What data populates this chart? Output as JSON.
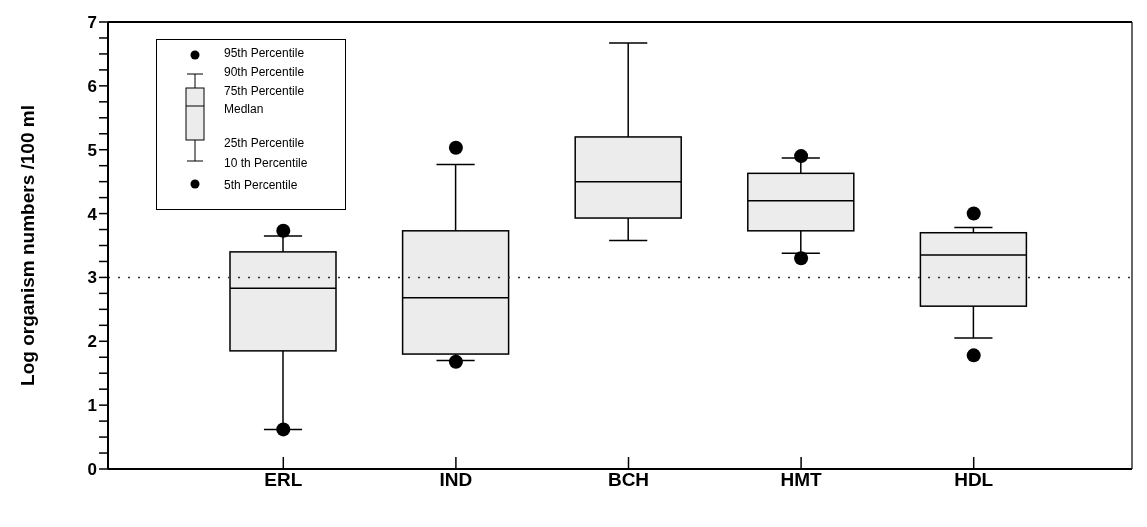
{
  "chart_data": {
    "type": "box",
    "ylabel": "Log organism numbers /100 ml",
    "categories": [
      "ERL",
      "IND",
      "BCH",
      "HMT",
      "HDL"
    ],
    "series": [
      {
        "color": "#ececec",
        "boxes": [
          {
            "low": 0.62,
            "q1": 1.85,
            "median": 2.83,
            "q3": 3.4,
            "high": 3.65,
            "outliers": [
              0.62,
              3.73
            ]
          },
          {
            "low": 1.7,
            "q1": 1.8,
            "median": 2.68,
            "q3": 3.73,
            "high": 4.77,
            "outliers": [
              1.68,
              5.03
            ]
          },
          {
            "low": 3.58,
            "q1": 3.93,
            "median": 4.5,
            "q3": 5.2,
            "high": 6.67
          },
          {
            "low": 3.38,
            "q1": 3.73,
            "median": 4.2,
            "q3": 4.63,
            "high": 4.87,
            "outliers": [
              3.3,
              4.9
            ]
          },
          {
            "low": 2.05,
            "q1": 2.55,
            "median": 3.35,
            "q3": 3.7,
            "high": 3.78,
            "outliers": [
              1.78,
              4.0
            ]
          }
        ]
      }
    ],
    "ylim": [
      0,
      7
    ],
    "yticks": [
      0,
      {
        "value": 0.25,
        "label": null
      },
      {
        "value": 0.5,
        "label": null
      },
      {
        "value": 0.75,
        "label": null
      },
      1,
      {
        "value": 1.25,
        "label": null
      },
      {
        "value": 1.5,
        "label": null
      },
      {
        "value": 1.75,
        "label": null
      },
      2,
      {
        "value": 2.25,
        "label": null
      },
      {
        "value": 2.5,
        "label": null
      },
      {
        "value": 2.75,
        "label": null
      },
      3,
      {
        "value": 3.25,
        "label": null
      },
      {
        "value": 3.5,
        "label": null
      },
      {
        "value": 3.75,
        "label": null
      },
      4,
      {
        "value": 4.25,
        "label": null
      },
      {
        "value": 4.5,
        "label": null
      },
      {
        "value": 4.75,
        "label": null
      },
      5,
      {
        "value": 5.25,
        "label": null
      },
      {
        "value": 5.5,
        "label": null
      },
      {
        "value": 5.75,
        "label": null
      },
      6,
      {
        "value": 6.25,
        "label": null
      },
      {
        "value": 6.5,
        "label": null
      },
      {
        "value": 6.75,
        "label": null
      },
      7
    ],
    "ref_lines": [
      {
        "axis": "y",
        "value": 3,
        "line_style": "dotted",
        "color": "#333333"
      }
    ],
    "grid": false,
    "legend": false,
    "annotations": [
      "95th Percentile",
      "90th Percentile",
      "75th Percentile",
      "Medlan",
      "25th Percentile",
      "10 th Percentile",
      "5th Percentile"
    ]
  }
}
